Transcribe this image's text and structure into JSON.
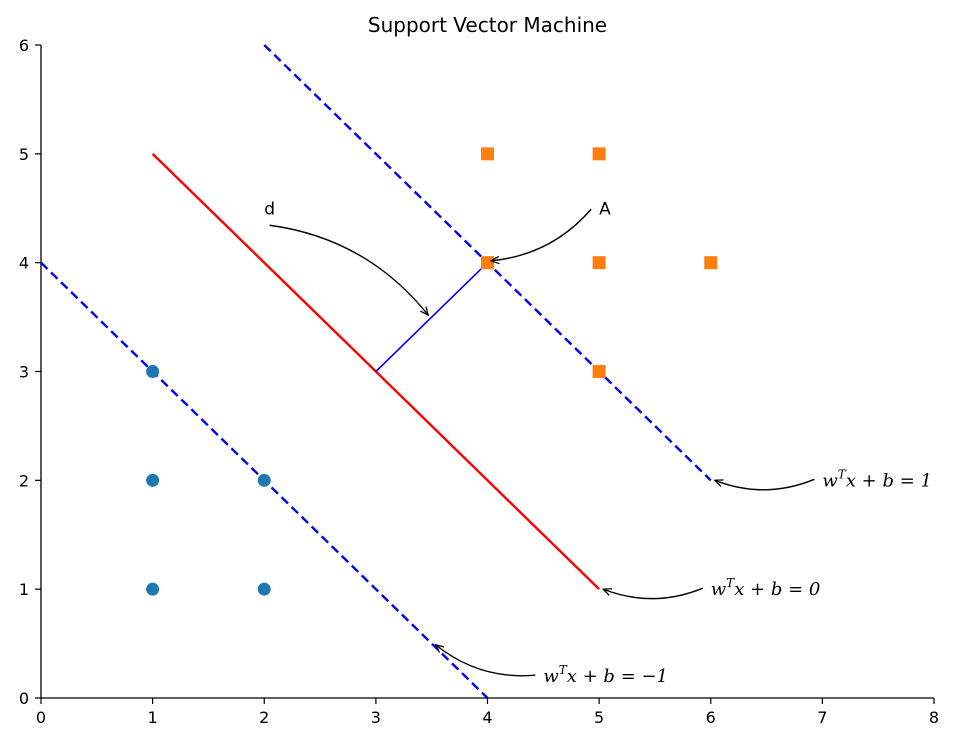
{
  "chart_data": {
    "type": "scatter",
    "title": "Support Vector Machine",
    "xlabel": "",
    "ylabel": "",
    "xlim": [
      0,
      8
    ],
    "ylim": [
      0,
      6
    ],
    "xticks": [
      "0",
      "1",
      "2",
      "3",
      "4",
      "5",
      "6",
      "7",
      "8"
    ],
    "yticks": [
      "0",
      "1",
      "2",
      "3",
      "4",
      "5",
      "6"
    ],
    "grid": false,
    "series": [
      {
        "marker": "circle",
        "color": "#1f77b4",
        "points": [
          [
            1,
            1
          ],
          [
            1,
            2
          ],
          [
            1,
            3
          ],
          [
            2,
            1
          ],
          [
            2,
            2
          ]
        ]
      },
      {
        "marker": "square",
        "color": "#ff7f0e",
        "points": [
          [
            4,
            4
          ],
          [
            4,
            5
          ],
          [
            5,
            5
          ],
          [
            5,
            3
          ],
          [
            5,
            4
          ],
          [
            6,
            4
          ]
        ]
      }
    ],
    "lines": [
      {
        "role": "decision-boundary",
        "color": "#ff0000",
        "style": "solid",
        "from": [
          1,
          5
        ],
        "to": [
          5,
          1
        ]
      },
      {
        "role": "margin-positive",
        "color": "#0000ff",
        "style": "dashed",
        "from": [
          2,
          6
        ],
        "to": [
          6,
          2
        ]
      },
      {
        "role": "margin-negative",
        "color": "#0000ff",
        "style": "dashed",
        "from": [
          0,
          4
        ],
        "to": [
          4,
          0
        ]
      },
      {
        "role": "distance",
        "color": "#0000ff",
        "style": "solid",
        "from": [
          3,
          3
        ],
        "to": [
          4,
          4
        ]
      }
    ],
    "annotations": [
      {
        "id": "d",
        "text": "d",
        "text_at": [
          2.0,
          4.5
        ],
        "arrow_to": [
          3.5,
          3.5
        ],
        "rad": 0.2
      },
      {
        "id": "A",
        "text": "A",
        "text_at": [
          5.0,
          4.5
        ],
        "arrow_to": [
          4.0,
          4.0
        ],
        "rad": 0.2
      },
      {
        "id": "plus1",
        "base": "w",
        "sup": "T",
        "rest": "x + b = 1",
        "text_at": [
          7.0,
          2.0
        ],
        "arrow_to": [
          6.0,
          2.0
        ],
        "rad": 0.2
      },
      {
        "id": "zero",
        "base": "w",
        "sup": "T",
        "rest": "x + b = 0",
        "text_at": [
          6.0,
          1.0
        ],
        "arrow_to": [
          5.0,
          1.0
        ],
        "rad": 0.2
      },
      {
        "id": "minus1",
        "base": "w",
        "sup": "T",
        "rest": "x + b = −1",
        "text_at": [
          4.5,
          0.2
        ],
        "arrow_to": [
          3.5,
          0.5
        ],
        "rad": 0.2
      }
    ]
  }
}
